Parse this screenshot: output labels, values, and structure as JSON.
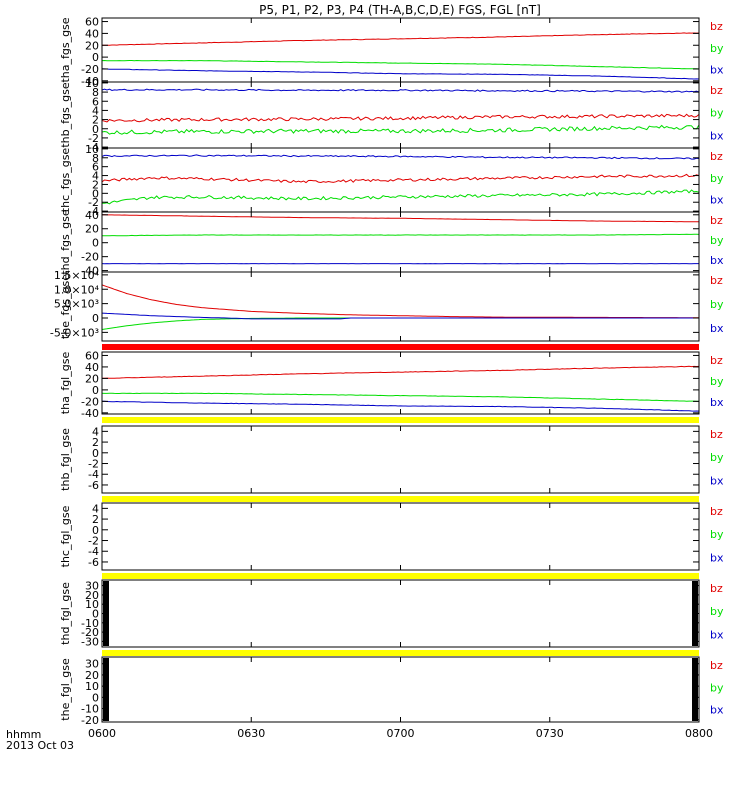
{
  "title": "P5, P1, P2, P3, P4 (TH-A,B,C,D,E) FGS, FGL [nT]",
  "colors": {
    "bz": "#e00000",
    "by": "#00dd00",
    "bx": "#0000c8",
    "bar_red": "#ff0000",
    "bar_yellow": "#ffff00"
  },
  "chart_data": {
    "type": "line",
    "x_ticks": [
      "0600",
      "0630",
      "0700",
      "0730",
      "0800"
    ],
    "x_range_minutes": [
      0,
      120
    ],
    "x_label_lines": [
      "hhmm",
      "2013 Oct 03"
    ],
    "panels": [
      {
        "ylabel": "tha_fgs_gse",
        "yrange": [
          -42,
          66
        ],
        "ytick_values": [
          60,
          40,
          20,
          0,
          -20,
          -40
        ],
        "ytick_labels": [
          "60",
          "40",
          "20",
          "0",
          "-20",
          "-40"
        ],
        "series": [
          {
            "name": "bz",
            "x": [
              0,
              20,
              40,
              60,
              80,
              100,
              120
            ],
            "y": [
              20,
              24,
              28,
              31,
              34,
              38,
              41
            ],
            "noise": 0.4
          },
          {
            "name": "by",
            "x": [
              0,
              20,
              40,
              60,
              80,
              100,
              120
            ],
            "y": [
              -6,
              -6,
              -8,
              -10,
              -12,
              -16,
              -20
            ],
            "noise": 0.3
          },
          {
            "name": "bx",
            "x": [
              0,
              20,
              40,
              60,
              80,
              100,
              120
            ],
            "y": [
              -20,
              -23,
              -25,
              -28,
              -29,
              -32,
              -37
            ],
            "noise": 0.3
          }
        ],
        "status_bar": null
      },
      {
        "ylabel": "thb_fgs_gse",
        "yrange": [
          -4.2,
          10.2
        ],
        "ytick_values": [
          10,
          8,
          6,
          4,
          2,
          0,
          -2,
          -4
        ],
        "ytick_labels": [
          "10",
          "8",
          "6",
          "4",
          "2",
          "0",
          "-2",
          "-4"
        ],
        "series": [
          {
            "name": "bz",
            "x": [
              0,
              20,
              40,
              60,
              80,
              100,
              120
            ],
            "y": [
              1.8,
              2.0,
              2.1,
              2.3,
              2.6,
              2.7,
              2.9
            ],
            "noise": 0.35
          },
          {
            "name": "by",
            "x": [
              0,
              20,
              40,
              60,
              80,
              100,
              120
            ],
            "y": [
              -0.8,
              -0.6,
              -0.5,
              -0.5,
              -0.3,
              0.1,
              0.4
            ],
            "noise": 0.45
          },
          {
            "name": "bx",
            "x": [
              0,
              20,
              40,
              60,
              80,
              100,
              120
            ],
            "y": [
              8.5,
              8.5,
              8.4,
              8.4,
              8.3,
              8.2,
              8.1
            ],
            "noise": 0.15
          }
        ],
        "status_bar": null
      },
      {
        "ylabel": "thc_fgs_gse",
        "yrange": [
          -4.2,
          10.2
        ],
        "ytick_values": [
          10,
          8,
          6,
          4,
          2,
          0,
          -2,
          -4
        ],
        "ytick_labels": [
          "10",
          "8",
          "6",
          "4",
          "2",
          "0",
          "-2",
          "-4"
        ],
        "series": [
          {
            "name": "bz",
            "x": [
              0,
              10,
              20,
              40,
              60,
              80,
              100,
              120
            ],
            "y": [
              2.8,
              3.5,
              3.3,
              2.6,
              3.0,
              3.4,
              3.8,
              4.0
            ],
            "noise": 0.3
          },
          {
            "name": "by",
            "x": [
              0,
              10,
              20,
              40,
              60,
              80,
              100,
              120
            ],
            "y": [
              -2.3,
              -0.9,
              -0.8,
              -1.2,
              -0.8,
              -0.5,
              -0.2,
              0.5
            ],
            "noise": 0.35
          },
          {
            "name": "bx",
            "x": [
              0,
              20,
              40,
              60,
              80,
              100,
              120
            ],
            "y": [
              8.4,
              8.5,
              8.4,
              8.3,
              8.1,
              8.0,
              7.8
            ],
            "noise": 0.15
          }
        ],
        "status_bar": null
      },
      {
        "ylabel": "thd_fgs_gse",
        "yrange": [
          -42,
          44
        ],
        "ytick_values": [
          40,
          20,
          0,
          -20,
          -40
        ],
        "ytick_labels": [
          "40",
          "20",
          "0",
          "-20",
          "-40"
        ],
        "series": [
          {
            "name": "bz",
            "x": [
              0,
              20,
              40,
              60,
              80,
              100,
              120
            ],
            "y": [
              40,
              38,
              36,
              35,
              33,
              31,
              30
            ],
            "noise": 0.1
          },
          {
            "name": "by",
            "x": [
              0,
              20,
              40,
              60,
              80,
              100,
              120
            ],
            "y": [
              10,
              11,
              11,
              11,
              11,
              11,
              12
            ],
            "noise": 0.2
          },
          {
            "name": "bx",
            "x": [
              0,
              20,
              40,
              60,
              80,
              100,
              120
            ],
            "y": [
              -30,
              -30,
              -30,
              -30,
              -30,
              -30,
              -30
            ],
            "noise": 0.1
          }
        ],
        "status_bar": null
      },
      {
        "ylabel": "the_fgs_gse",
        "yrange": [
          -8000,
          16000
        ],
        "ytick_values": [
          15000,
          10000,
          5000,
          0,
          -5000
        ],
        "ytick_labels": [
          "1.5×10⁴",
          "1.0×10⁴",
          "5.0×10³",
          "0",
          "-5.0×10³"
        ],
        "series": [
          {
            "name": "bz",
            "x": [
              0,
              5,
              10,
              15,
              20,
              30,
              40,
              50,
              60,
              70,
              80,
              100,
              120
            ],
            "y": [
              11500,
              8500,
              6300,
              4700,
              3600,
              2300,
              1600,
              1100,
              800,
              500,
              300,
              200,
              100
            ],
            "noise": 0
          },
          {
            "name": "by",
            "x": [
              0,
              5,
              10,
              15,
              20,
              30,
              40,
              50,
              60,
              80,
              100,
              120
            ],
            "y": [
              -4000,
              -2700,
              -1700,
              -1000,
              -500,
              -150,
              0,
              0,
              0,
              0,
              0,
              0
            ],
            "noise": 0
          },
          {
            "name": "bx",
            "x": [
              0,
              10,
              20,
              25,
              30,
              40,
              48,
              50,
              120
            ],
            "y": [
              1700,
              800,
              200,
              0,
              -300,
              -300,
              -300,
              0,
              0
            ],
            "noise": 0
          }
        ],
        "status_bar": "red"
      },
      {
        "ylabel": "tha_fgl_gse",
        "yrange": [
          -42,
          66
        ],
        "ytick_values": [
          60,
          40,
          20,
          0,
          -20,
          -40
        ],
        "ytick_labels": [
          "60",
          "40",
          "20",
          "0",
          "-20",
          "-40"
        ],
        "series": [
          {
            "name": "bz",
            "x": [
              0,
              20,
              40,
              60,
              80,
              100,
              120
            ],
            "y": [
              20,
              24,
              28,
              31,
              34,
              38,
              41
            ],
            "noise": 0.4
          },
          {
            "name": "by",
            "x": [
              0,
              20,
              40,
              60,
              80,
              100,
              120
            ],
            "y": [
              -6,
              -6,
              -8,
              -10,
              -12,
              -16,
              -20
            ],
            "noise": 0.3
          },
          {
            "name": "bx",
            "x": [
              0,
              20,
              40,
              60,
              80,
              100,
              120
            ],
            "y": [
              -20,
              -23,
              -25,
              -28,
              -29,
              -32,
              -37
            ],
            "noise": 0.3
          }
        ],
        "status_bar": "yellow"
      },
      {
        "ylabel": "thb_fgl_gse",
        "yrange": [
          -7.5,
          5
        ],
        "ytick_values": [
          4,
          2,
          0,
          -2,
          -4,
          -6
        ],
        "ytick_labels": [
          "4",
          "2",
          "0",
          "-2",
          "-4",
          "-6"
        ],
        "series": [],
        "status_bar": "yellow"
      },
      {
        "ylabel": "thc_fgl_gse",
        "yrange": [
          -7.5,
          5
        ],
        "ytick_values": [
          4,
          2,
          0,
          -2,
          -4,
          -6
        ],
        "ytick_labels": [
          "4",
          "2",
          "0",
          "-2",
          "-4",
          "-6"
        ],
        "series": [],
        "status_bar": "yellow"
      },
      {
        "ylabel": "thd_fgl_gse",
        "yrange": [
          -36,
          36
        ],
        "ytick_values": [
          30,
          20,
          10,
          0,
          -10,
          -20,
          -30
        ],
        "ytick_labels": [
          "30",
          "20",
          "10",
          "0",
          "-10",
          "-20",
          "-30"
        ],
        "series": [],
        "status_bar": "yellow",
        "edge_data": true
      },
      {
        "ylabel": "the_fgl_gse",
        "yrange": [
          -22,
          36
        ],
        "ytick_values": [
          30,
          20,
          10,
          0,
          -10,
          -20
        ],
        "ytick_labels": [
          "30",
          "20",
          "10",
          "0",
          "-10",
          "-20"
        ],
        "series": [],
        "status_bar": null,
        "edge_data": true
      }
    ],
    "legend": [
      "bz",
      "by",
      "bx"
    ]
  }
}
